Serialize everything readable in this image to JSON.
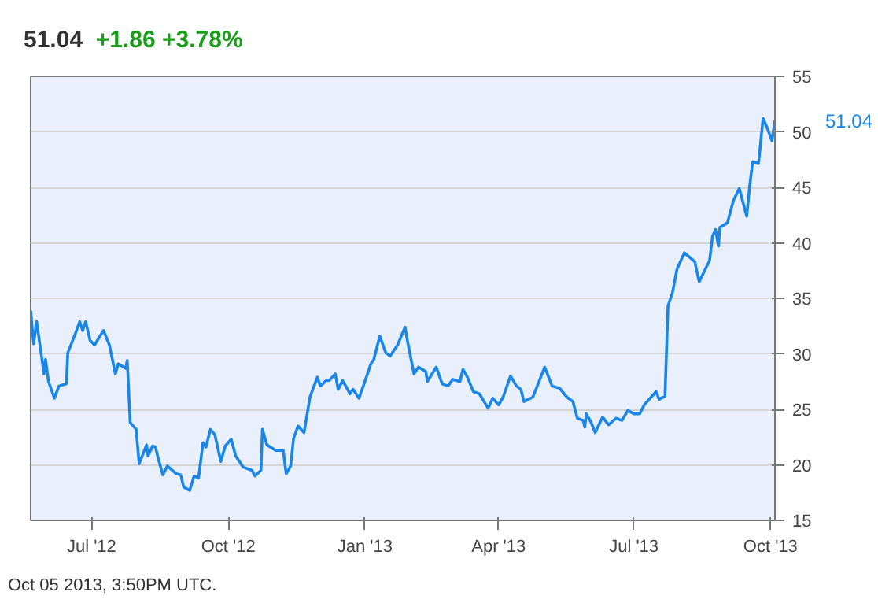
{
  "chart_data": {
    "type": "line",
    "title": "51.04",
    "subtitle": "+1.86  +3.78%",
    "x": [
      "2012-05-21",
      "2012-05-23",
      "2012-05-25",
      "2012-05-30",
      "2012-05-31",
      "2012-06-02",
      "2012-06-06",
      "2012-06-09",
      "2012-06-14",
      "2012-06-15",
      "2012-06-20",
      "2012-06-23",
      "2012-06-25",
      "2012-06-27",
      "2012-06-30",
      "2012-07-03",
      "2012-07-09",
      "2012-07-13",
      "2012-07-17",
      "2012-07-19",
      "2012-07-24",
      "2012-07-25",
      "2012-07-27",
      "2012-07-31",
      "2012-08-02",
      "2012-08-07",
      "2012-08-08",
      "2012-08-11",
      "2012-08-13",
      "2012-08-15",
      "2012-08-18",
      "2012-08-21",
      "2012-08-27",
      "2012-08-30",
      "2012-09-01",
      "2012-09-05",
      "2012-09-08",
      "2012-09-11",
      "2012-09-14",
      "2012-09-16",
      "2012-09-19",
      "2012-09-22",
      "2012-09-26",
      "2012-09-29",
      "2012-10-03",
      "2012-10-06",
      "2012-10-11",
      "2012-10-17",
      "2012-10-19",
      "2012-10-23",
      "2012-10-24",
      "2012-10-27",
      "2012-11-02",
      "2012-11-07",
      "2012-11-09",
      "2012-11-12",
      "2012-11-14",
      "2012-11-17",
      "2012-11-21",
      "2012-11-22",
      "2012-11-25",
      "2012-11-30",
      "2012-12-02",
      "2012-12-06",
      "2012-12-08",
      "2012-12-12",
      "2012-12-14",
      "2012-12-17",
      "2012-12-22",
      "2012-12-24",
      "2012-12-28",
      "2013-01-02",
      "2013-01-05",
      "2013-01-07",
      "2013-01-11",
      "2013-01-15",
      "2013-01-18",
      "2013-01-23",
      "2013-01-28",
      "2013-01-30",
      "2013-02-03",
      "2013-02-06",
      "2013-02-11",
      "2013-02-12",
      "2013-02-18",
      "2013-02-22",
      "2013-02-26",
      "2013-03-01",
      "2013-03-06",
      "2013-03-08",
      "2013-03-11",
      "2013-03-15",
      "2013-03-19",
      "2013-03-25",
      "2013-03-28",
      "2013-04-01",
      "2013-04-04",
      "2013-04-09",
      "2013-04-13",
      "2013-04-16",
      "2013-04-18",
      "2013-04-24",
      "2013-04-27",
      "2013-05-02",
      "2013-05-07",
      "2013-05-12",
      "2013-05-17",
      "2013-05-21",
      "2013-05-24",
      "2013-05-28",
      "2013-05-29",
      "2013-05-30",
      "2013-06-02",
      "2013-06-05",
      "2013-06-10",
      "2013-06-14",
      "2013-06-19",
      "2013-06-23",
      "2013-06-27",
      "2013-07-01",
      "2013-07-05",
      "2013-07-08",
      "2013-07-16",
      "2013-07-18",
      "2013-07-22",
      "2013-07-24",
      "2013-07-27",
      "2013-07-30",
      "2013-08-04",
      "2013-08-11",
      "2013-08-14",
      "2013-08-21",
      "2013-08-23",
      "2013-08-25",
      "2013-08-27",
      "2013-08-28",
      "2013-09-02",
      "2013-09-06",
      "2013-09-10",
      "2013-09-15",
      "2013-09-17",
      "2013-09-19",
      "2013-09-23",
      "2013-09-26",
      "2013-09-29",
      "2013-10-02",
      "2013-10-04"
    ],
    "series": [
      {
        "color": "#1a87e8",
        "values": [
          33.9,
          30.9,
          32.9,
          28.2,
          29.5,
          27.5,
          26.0,
          27.1,
          27.3,
          30.1,
          31.8,
          32.9,
          32.1,
          32.9,
          31.2,
          30.8,
          32.1,
          30.8,
          28.2,
          29.1,
          28.7,
          29.4,
          23.8,
          23.2,
          20.1,
          21.8,
          20.8,
          21.7,
          21.6,
          20.5,
          19.1,
          19.9,
          19.2,
          19.1,
          18.0,
          17.7,
          19.0,
          18.8,
          22.0,
          21.6,
          23.2,
          22.7,
          20.3,
          21.7,
          22.3,
          20.8,
          19.8,
          19.5,
          19.0,
          19.5,
          23.2,
          21.8,
          21.3,
          21.3,
          19.2,
          19.9,
          22.4,
          23.5,
          22.9,
          23.7,
          26.1,
          27.9,
          27.1,
          27.6,
          27.6,
          28.2,
          26.8,
          27.6,
          26.4,
          26.8,
          26.0,
          27.9,
          29.1,
          29.5,
          31.6,
          30.1,
          29.8,
          30.8,
          32.4,
          30.9,
          28.2,
          28.8,
          28.4,
          27.5,
          28.8,
          27.3,
          27.1,
          27.7,
          27.5,
          28.6,
          27.9,
          26.6,
          26.4,
          25.1,
          26.0,
          25.4,
          26.1,
          28.0,
          27.1,
          26.8,
          25.7,
          26.1,
          27.1,
          28.8,
          27.1,
          26.9,
          26.1,
          25.7,
          24.2,
          24.0,
          23.4,
          24.6,
          23.9,
          22.9,
          24.3,
          23.6,
          24.2,
          24.0,
          24.9,
          24.6,
          24.6,
          25.4,
          26.6,
          25.9,
          26.2,
          34.3,
          35.5,
          37.6,
          39.1,
          38.3,
          36.5,
          38.4,
          40.6,
          41.2,
          39.7,
          41.4,
          41.8,
          43.8,
          44.9,
          42.4,
          45.1,
          47.3,
          47.2,
          51.2,
          50.3,
          49.2,
          51.04
        ]
      }
    ],
    "xlim": [
      "2012-05-21",
      "2013-10-04"
    ],
    "xticks": [
      {
        "value": "2012-07-01",
        "label": "Jul '12"
      },
      {
        "value": "2012-10-01",
        "label": "Oct '12"
      },
      {
        "value": "2013-01-01",
        "label": "Jan '13"
      },
      {
        "value": "2013-04-01",
        "label": "Apr '13"
      },
      {
        "value": "2013-07-01",
        "label": "Jul '13"
      },
      {
        "value": "2013-10-01",
        "label": "Oct '13"
      }
    ],
    "ylim": [
      15,
      55
    ],
    "yticks": [
      15,
      20,
      25,
      30,
      35,
      40,
      45,
      50,
      55
    ],
    "grid": true,
    "marker": "none",
    "line_style": "solid",
    "annotations": [
      {
        "text": "51.04",
        "x": "2013-10-04",
        "y": 51.04
      },
      "Oct 05 2013, 3:50PM UTC."
    ]
  }
}
